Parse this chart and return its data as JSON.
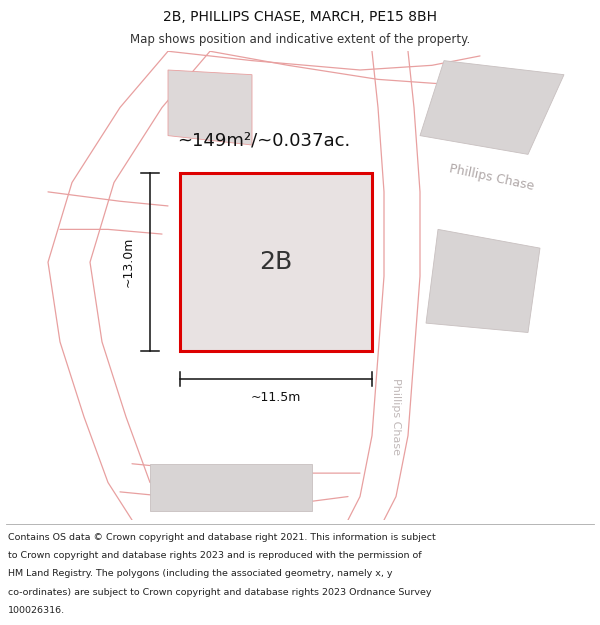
{
  "title": "2B, PHILLIPS CHASE, MARCH, PE15 8BH",
  "subtitle": "Map shows position and indicative extent of the property.",
  "area_label": "~149m²/~0.037ac.",
  "property_label": "2B",
  "width_label": "~11.5m",
  "height_label": "~13.0m",
  "road_label_top_right": "Phillips Chase",
  "road_label_vertical": "Phillips Chase",
  "footer_line1": "Contains OS data © Crown copyright and database right 2021. This information is subject",
  "footer_line2": "to Crown copyright and database rights 2023 and is reproduced with the permission of",
  "footer_line3": "HM Land Registry. The polygons (including the associated geometry, namely x, y",
  "footer_line4": "co-ordinates) are subject to Crown copyright and database rights 2023 Ordnance Survey",
  "footer_line5": "100026316.",
  "bg_color": "#ffffff",
  "map_bg": "#f5eeee",
  "property_fill": "#e8e2e2",
  "property_border": "#dd0000",
  "road_line_color": "#e8a0a0",
  "building_fill": "#d8d0d0",
  "dim_line_color": "#111111",
  "title_fontsize": 10,
  "subtitle_fontsize": 8.5,
  "area_fontsize": 13,
  "label_fontsize": 18,
  "dim_fontsize": 9,
  "road_label_fontsize": 9,
  "footer_fontsize": 6.8
}
